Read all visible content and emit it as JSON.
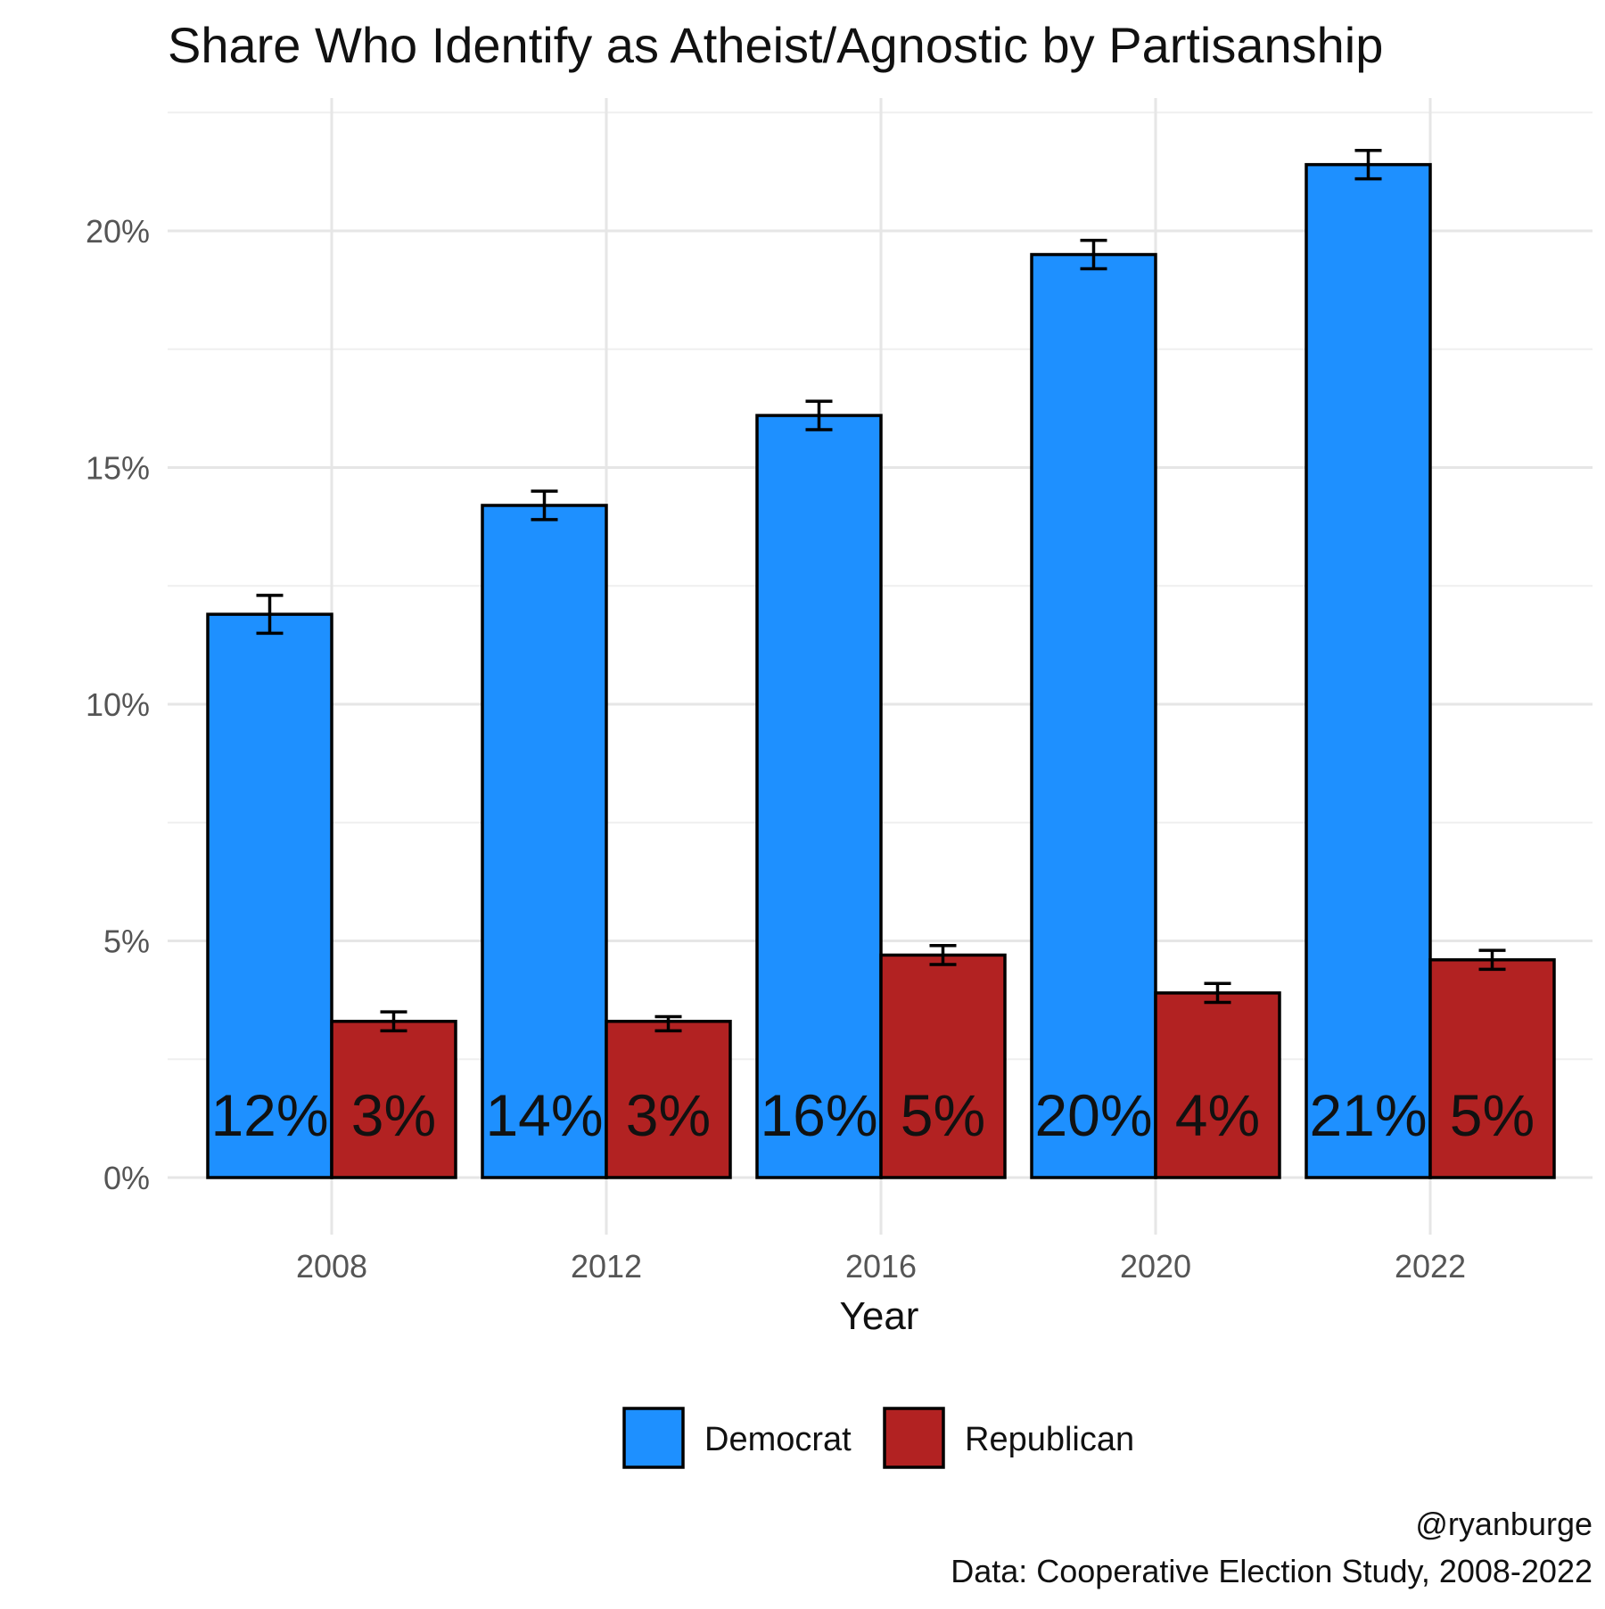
{
  "chart_data": {
    "type": "bar",
    "title": "Share Who Identify as Atheist/Agnostic by Partisanship",
    "xlabel": "Year",
    "ylabel": "",
    "categories": [
      "2008",
      "2012",
      "2016",
      "2020",
      "2022"
    ],
    "ylim": [
      0,
      22.5
    ],
    "yticks": [
      0,
      5,
      10,
      15,
      20
    ],
    "ytick_labels": [
      "0%",
      "5%",
      "10%",
      "15%",
      "20%"
    ],
    "grid": true,
    "legend_position": "bottom",
    "series": [
      {
        "name": "Democrat",
        "color": "#1E90FF",
        "values": [
          11.9,
          14.2,
          16.1,
          19.5,
          21.4
        ],
        "error_low": [
          11.5,
          13.9,
          15.8,
          19.2,
          21.1
        ],
        "error_high": [
          12.3,
          14.5,
          16.4,
          19.8,
          21.7
        ],
        "labels": [
          "12%",
          "14%",
          "16%",
          "20%",
          "21%"
        ]
      },
      {
        "name": "Republican",
        "color": "#B22222",
        "values": [
          3.3,
          3.3,
          4.7,
          3.9,
          4.6
        ],
        "error_low": [
          3.1,
          3.1,
          4.5,
          3.7,
          4.4
        ],
        "error_high": [
          3.5,
          3.4,
          4.9,
          4.1,
          4.8
        ],
        "labels": [
          "3%",
          "3%",
          "5%",
          "4%",
          "5%"
        ]
      }
    ],
    "caption_lines": [
      "@ryanburge",
      "Data: Cooperative Election Study, 2008-2022"
    ]
  }
}
